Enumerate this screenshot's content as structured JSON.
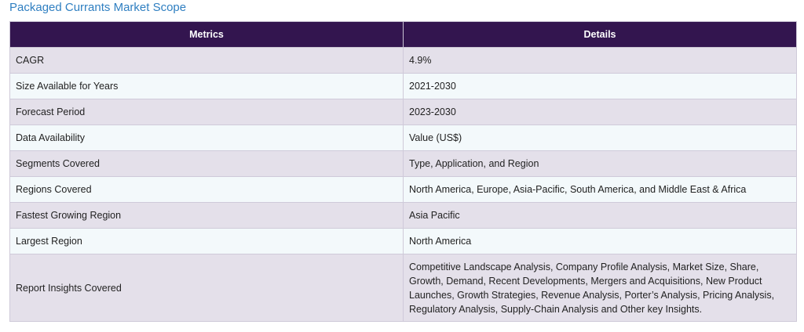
{
  "title": "Packaged Currants Market Scope",
  "table": {
    "headers": [
      "Metrics",
      "Details"
    ],
    "rows": [
      {
        "metric": "CAGR",
        "detail": "4.9%"
      },
      {
        "metric": "Size Available for Years",
        "detail": "2021-2030"
      },
      {
        "metric": "Forecast Period",
        "detail": "2023-2030"
      },
      {
        "metric": "Data Availability",
        "detail": "Value (US$)"
      },
      {
        "metric": "Segments Covered",
        "detail": "Type, Application, and Region"
      },
      {
        "metric": "Regions Covered",
        "detail": "North America, Europe, Asia-Pacific, South America, and Middle East & Africa"
      },
      {
        "metric": "Fastest Growing Region",
        "detail": "Asia Pacific"
      },
      {
        "metric": "Largest Region",
        "detail": "North America"
      },
      {
        "metric": "Report Insights Covered",
        "detail": "Competitive Landscape Analysis, Company Profile Analysis, Market Size, Share, Growth, Demand, Recent Developments, Mergers and Acquisitions, New Product Launches, Growth Strategies, Revenue Analysis, Porter’s Analysis, Pricing Analysis, Regulatory Analysis, Supply-Chain Analysis and Other key Insights."
      }
    ]
  }
}
